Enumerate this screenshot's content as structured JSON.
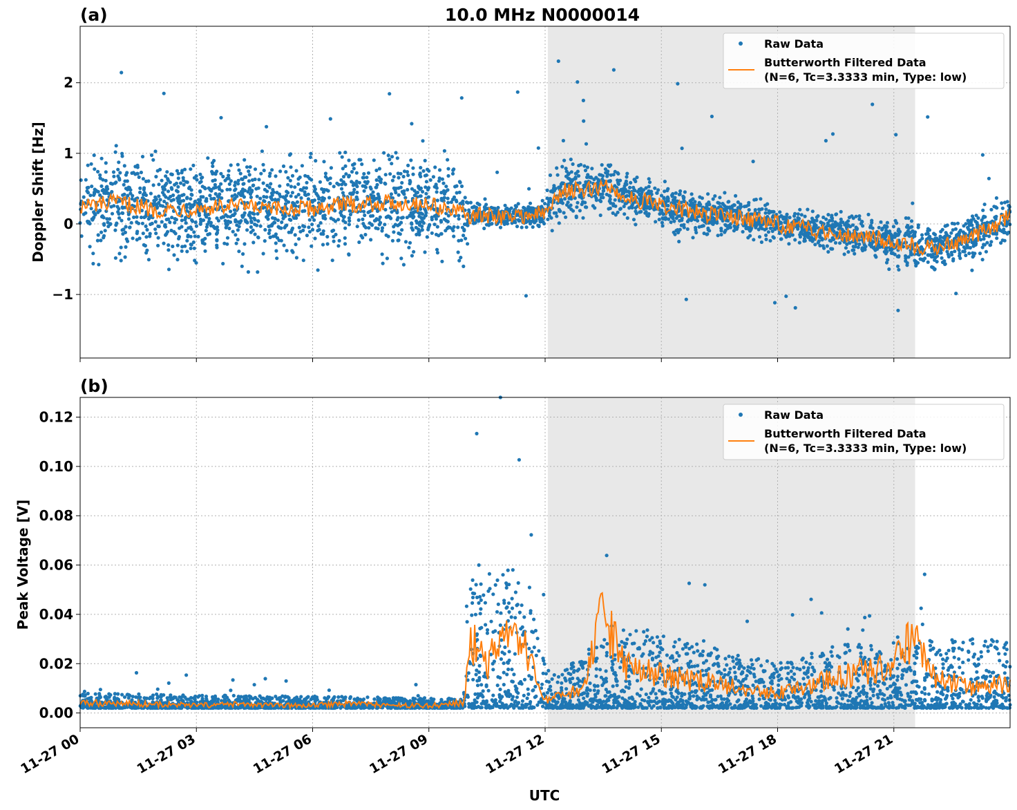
{
  "figure": {
    "title": "10.0 MHz N0000014",
    "xlabel": "UTC"
  },
  "colors": {
    "raw": "#1f77b4",
    "filtered": "#ff7f0e",
    "shade": "#e8e8e8",
    "grid": "#b0b0b0"
  },
  "chart_data": [
    {
      "type": "scatter",
      "panel_label": "(a)",
      "ylabel": "Doppler Shift [Hz]",
      "xlim_hours": [
        0,
        24
      ],
      "ylim": [
        -1.9,
        2.8
      ],
      "yticks": [
        -1,
        0,
        1,
        2
      ],
      "ytick_labels": [
        "−1",
        "0",
        "1",
        "2"
      ],
      "xticks_hours": [
        0,
        3,
        6,
        9,
        12,
        15,
        18,
        21
      ],
      "xtick_labels": [
        "11-27 00",
        "11-27 03",
        "11-27 06",
        "11-27 09",
        "11-27 12",
        "11-27 15",
        "11-27 18",
        "11-27 21"
      ],
      "shaded_span_hours": [
        12.07,
        21.55
      ],
      "grid": true,
      "legend": {
        "placement": "top-right",
        "raw_label": "Raw Data",
        "filtered_label_line1": "Butterworth Filtered Data",
        "filtered_label_line2": "(N=6, Tc=3.3333 min, Type: low)"
      },
      "filtered_envelope": {
        "x_hours": [
          0,
          1,
          2,
          3,
          4,
          5,
          6,
          7,
          8,
          9,
          10,
          11,
          12,
          12.5,
          13,
          13.5,
          14,
          15,
          16,
          17,
          18,
          19,
          20,
          21,
          22,
          23,
          24
        ],
        "y": [
          0.25,
          0.3,
          0.2,
          0.22,
          0.25,
          0.2,
          0.22,
          0.28,
          0.3,
          0.28,
          0.12,
          0.1,
          0.15,
          0.5,
          0.45,
          0.55,
          0.4,
          0.25,
          0.15,
          0.1,
          0.0,
          -0.1,
          -0.15,
          -0.25,
          -0.35,
          -0.2,
          0.1
        ]
      },
      "raw_spread": {
        "x_hours": [
          0,
          10,
          10.01,
          12,
          12.01,
          14,
          16,
          18,
          20,
          22,
          24
        ],
        "half_width": [
          0.8,
          0.8,
          0.2,
          0.2,
          0.45,
          0.4,
          0.35,
          0.3,
          0.3,
          0.4,
          0.35
        ]
      }
    },
    {
      "type": "scatter",
      "panel_label": "(b)",
      "ylabel": "Peak Voltage [V]",
      "xlim_hours": [
        0,
        24
      ],
      "ylim": [
        -0.006,
        0.128
      ],
      "yticks": [
        0,
        0.02,
        0.04,
        0.06,
        0.08,
        0.1,
        0.12
      ],
      "ytick_labels": [
        "0.00",
        "0.02",
        "0.04",
        "0.06",
        "0.08",
        "0.10",
        "0.12"
      ],
      "xticks_hours": [
        0,
        3,
        6,
        9,
        12,
        15,
        18,
        21
      ],
      "xtick_labels": [
        "11-27 00",
        "11-27 03",
        "11-27 06",
        "11-27 09",
        "11-27 12",
        "11-27 15",
        "11-27 18",
        "11-27 21"
      ],
      "shaded_span_hours": [
        12.07,
        21.55
      ],
      "grid": true,
      "legend": {
        "placement": "top-right",
        "raw_label": "Raw Data",
        "filtered_label_line1": "Butterworth Filtered Data",
        "filtered_label_line2": "(N=6, Tc=3.3333 min, Type: low)"
      },
      "filtered_envelope": {
        "x_hours": [
          0,
          1,
          2,
          3,
          4,
          5,
          6,
          7,
          8,
          9,
          9.9,
          10.1,
          10.5,
          11,
          11.5,
          12,
          12.3,
          13,
          13.5,
          14,
          15,
          16,
          17,
          18,
          19,
          20,
          21,
          21.5,
          22,
          23,
          24
        ],
        "y": [
          0.004,
          0.004,
          0.0035,
          0.003,
          0.0035,
          0.003,
          0.003,
          0.004,
          0.003,
          0.003,
          0.004,
          0.03,
          0.02,
          0.03,
          0.025,
          0.005,
          0.006,
          0.01,
          0.04,
          0.02,
          0.015,
          0.013,
          0.01,
          0.008,
          0.012,
          0.016,
          0.02,
          0.03,
          0.015,
          0.01,
          0.012
        ]
      },
      "raw_spread": {
        "x_hours": [
          0,
          9.9,
          10.1,
          11.5,
          12,
          12.3,
          13,
          14,
          16,
          18,
          20,
          22,
          24
        ],
        "top": [
          0.008,
          0.006,
          0.06,
          0.06,
          0.02,
          0.015,
          0.025,
          0.035,
          0.028,
          0.02,
          0.03,
          0.03,
          0.03
        ]
      }
    }
  ]
}
